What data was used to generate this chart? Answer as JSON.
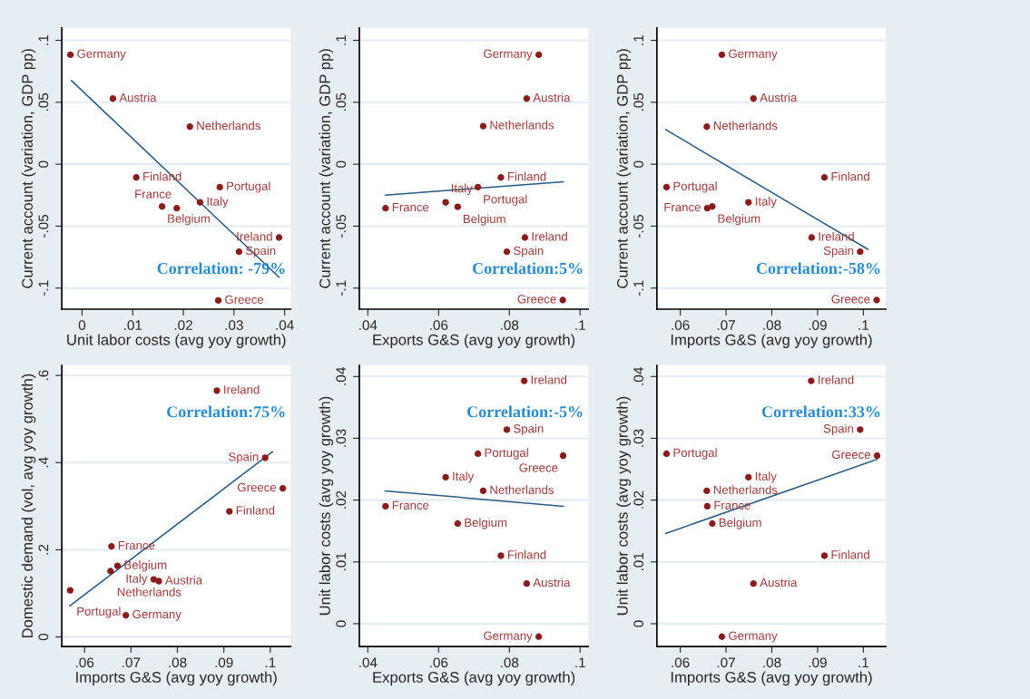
{
  "chart_data": [
    {
      "type": "scatter",
      "xlabel": "Unit labor costs (avg yoy growth)",
      "ylabel": "Current account (variation, GDP pp)",
      "xlim": [
        -0.004,
        0.0412
      ],
      "ylim": [
        -0.117,
        0.11
      ],
      "xticks": [
        0,
        {
          "value": 0.01,
          "label": ".01"
        },
        {
          "value": 0.02,
          "label": ".02"
        },
        {
          "value": 0.03,
          "label": ".03"
        },
        {
          "value": 0.04,
          "label": ".04"
        }
      ],
      "yticks": [
        {
          "value": -0.1,
          "label": "-.1"
        },
        {
          "value": -0.05,
          "label": "-.05"
        },
        0,
        {
          "value": 0.05,
          "label": ".05"
        },
        {
          "value": 0.1,
          "label": ".1"
        }
      ],
      "grid": "y",
      "marker": "circle",
      "series": [
        {
          "type": "scatter",
          "color": "#8b1c1c",
          "x": [
            -0.0023,
            0.0061,
            0.0213,
            0.0107,
            0.0272,
            0.0233,
            0.0158,
            0.0187,
            0.0389,
            0.031,
            0.0269
          ],
          "values": [
            0.0884,
            0.053,
            0.0303,
            -0.0107,
            -0.0185,
            -0.0308,
            -0.0341,
            -0.0355,
            -0.0592,
            -0.0706,
            -0.11
          ]
        },
        {
          "type": "line",
          "marker": "none",
          "color": "#2a5a80",
          "x": [
            -0.0021,
            0.0389
          ],
          "values": [
            0.0675,
            -0.0912
          ]
        }
      ],
      "annotations": [
        {
          "text": "Germany",
          "x": -0.0023,
          "y": 0.0884
        },
        {
          "text": "Austria",
          "x": 0.0061,
          "y": 0.053
        },
        {
          "text": "Netherlands",
          "x": 0.0213,
          "y": 0.0303
        },
        {
          "text": "Finland",
          "x": 0.0107,
          "y": -0.0107
        },
        {
          "text": "Portugal",
          "x": 0.0272,
          "y": -0.0185
        },
        {
          "text": "Italy",
          "x": 0.0233,
          "y": -0.0308
        },
        {
          "text": "Belgium",
          "x": 0.0158,
          "y": -0.0341
        },
        {
          "text": "France",
          "x": 0.0187,
          "y": -0.0355
        },
        {
          "text": "Ireland",
          "x": 0.0389,
          "y": -0.0592
        },
        {
          "text": "Spain",
          "x": 0.031,
          "y": -0.0706
        },
        {
          "text": "Greece",
          "x": 0.0269,
          "y": -0.11
        },
        "Correlation: -79%"
      ]
    },
    {
      "type": "scatter",
      "xlabel": "Exports G&S (avg yoy growth)",
      "ylabel": "Current account (variation, GDP pp)",
      "xlim": [
        0.0376,
        0.1023
      ],
      "ylim": [
        -0.117,
        0.11
      ],
      "xticks": [
        {
          "value": 0.04,
          "label": ".04"
        },
        {
          "value": 0.06,
          "label": ".06"
        },
        {
          "value": 0.08,
          "label": ".08"
        },
        {
          "value": 0.1,
          "label": ".1"
        }
      ],
      "yticks": [
        {
          "value": -0.1,
          "label": "-.1"
        },
        {
          "value": -0.05,
          "label": "-.05"
        },
        0,
        {
          "value": 0.05,
          "label": ".05"
        },
        {
          "value": 0.1,
          "label": ".1"
        }
      ],
      "grid": "y",
      "marker": "circle",
      "series": [
        {
          "type": "scatter",
          "color": "#8b1c1c",
          "x": [
            0.0883,
            0.0849,
            0.0726,
            0.0776,
            0.0711,
            0.062,
            0.0654,
            0.045,
            0.0844,
            0.0793,
            0.0951
          ],
          "values": [
            0.0884,
            0.053,
            0.0308,
            -0.0107,
            -0.0185,
            -0.0308,
            -0.0344,
            -0.0355,
            -0.0592,
            -0.0706,
            -0.1097
          ]
        },
        {
          "type": "line",
          "marker": "none",
          "color": "#2a5a80",
          "x": [
            0.0449,
            0.0953
          ],
          "values": [
            -0.0249,
            -0.0142
          ]
        }
      ],
      "annotations": [
        {
          "text": "Germany",
          "x": 0.0883,
          "y": 0.0884
        },
        {
          "text": "Austria",
          "x": 0.0849,
          "y": 0.053
        },
        {
          "text": "Netherlands",
          "x": 0.0726,
          "y": 0.0308
        },
        {
          "text": "Finland",
          "x": 0.0776,
          "y": -0.0107
        },
        {
          "text": "Portugal",
          "x": 0.0711,
          "y": -0.0185
        },
        {
          "text": "Italy",
          "x": 0.062,
          "y": -0.0308
        },
        {
          "text": "Belgium",
          "x": 0.0654,
          "y": -0.0344
        },
        {
          "text": "France",
          "x": 0.045,
          "y": -0.0355
        },
        {
          "text": "Ireland",
          "x": 0.0844,
          "y": -0.0592
        },
        {
          "text": "Spain",
          "x": 0.0793,
          "y": -0.0706
        },
        {
          "text": "Greece",
          "x": 0.0951,
          "y": -0.1097
        },
        "Correlation:5%"
      ]
    },
    {
      "type": "scatter",
      "xlabel": "Imports G&S (avg yoy growth)",
      "ylabel": "Current account (variation, GDP pp)",
      "xlim": [
        0.0549,
        0.1049
      ],
      "ylim": [
        -0.117,
        0.11
      ],
      "xticks": [
        {
          "value": 0.06,
          "label": ".06"
        },
        {
          "value": 0.07,
          "label": ".07"
        },
        {
          "value": 0.08,
          "label": ".08"
        },
        {
          "value": 0.09,
          "label": ".09"
        },
        {
          "value": 0.1,
          "label": ".1"
        }
      ],
      "yticks": [
        {
          "value": -0.1,
          "label": "-.1"
        },
        {
          "value": -0.05,
          "label": "-.05"
        },
        0,
        {
          "value": 0.05,
          "label": ".05"
        },
        {
          "value": 0.1,
          "label": ".1"
        }
      ],
      "grid": "y",
      "marker": "circle",
      "series": [
        {
          "type": "scatter",
          "color": "#8b1c1c",
          "x": [
            0.0691,
            0.076,
            0.0658,
            0.0915,
            0.057,
            0.0749,
            0.067,
            0.0659,
            0.0887,
            0.0993,
            0.1029
          ],
          "values": [
            0.0884,
            0.053,
            0.0303,
            -0.0107,
            -0.0185,
            -0.0308,
            -0.0341,
            -0.0355,
            -0.0592,
            -0.0706,
            -0.1097
          ]
        },
        {
          "type": "line",
          "marker": "none",
          "color": "#2a5a80",
          "x": [
            0.0568,
            0.101
          ],
          "values": [
            0.028,
            -0.0687
          ]
        }
      ],
      "annotations": [
        {
          "text": "Germany",
          "x": 0.0691,
          "y": 0.0884
        },
        {
          "text": "Austria",
          "x": 0.076,
          "y": 0.053
        },
        {
          "text": "Netherlands",
          "x": 0.0658,
          "y": 0.0303
        },
        {
          "text": "Finland",
          "x": 0.0915,
          "y": -0.0107
        },
        {
          "text": "Portugal",
          "x": 0.057,
          "y": -0.0185
        },
        {
          "text": "Italy",
          "x": 0.0749,
          "y": -0.0308
        },
        {
          "text": "Belgium",
          "x": 0.067,
          "y": -0.0341
        },
        {
          "text": "France",
          "x": 0.0659,
          "y": -0.0355
        },
        {
          "text": "Ireland",
          "x": 0.0887,
          "y": -0.0592
        },
        {
          "text": "Spain",
          "x": 0.0993,
          "y": -0.0706
        },
        {
          "text": "Greece",
          "x": 0.1029,
          "y": -0.1097
        },
        "Correlation:-58%"
      ]
    },
    {
      "type": "scatter",
      "xlabel": "Imports G&S (avg yoy growth)",
      "ylabel": "Domestic demand (vol, avg yoy growth)",
      "xlim": [
        0.0551,
        0.1044
      ],
      "ylim": [
        -0.022,
        0.623
      ],
      "xticks": [
        {
          "value": 0.06,
          "label": ".06"
        },
        {
          "value": 0.07,
          "label": ".07"
        },
        {
          "value": 0.08,
          "label": ".08"
        },
        {
          "value": 0.09,
          "label": ".09"
        },
        {
          "value": 0.1,
          "label": ".1"
        }
      ],
      "yticks": [
        0,
        {
          "value": 0.2,
          "label": ".2"
        },
        {
          "value": 0.4,
          "label": ".4"
        },
        {
          "value": 0.6,
          "label": ".6"
        }
      ],
      "grid": "y",
      "marker": "circle",
      "series": [
        {
          "type": "scatter",
          "color": "#8b1c1c",
          "x": [
            0.0885,
            0.0989,
            0.1027,
            0.0912,
            0.0658,
            0.0671,
            0.0656,
            0.0749,
            0.076,
            0.0569,
            0.0689
          ],
          "values": [
            0.565,
            0.411,
            0.341,
            0.288,
            0.208,
            0.163,
            0.151,
            0.132,
            0.128,
            0.107,
            0.05
          ]
        },
        {
          "type": "line",
          "marker": "none",
          "color": "#2a5a80",
          "x": [
            0.0568,
            0.1005
          ],
          "values": [
            0.071,
            0.425
          ]
        }
      ],
      "annotations": [
        {
          "text": "Ireland",
          "x": 0.0885,
          "y": 0.565
        },
        {
          "text": "Spain",
          "x": 0.0989,
          "y": 0.411
        },
        {
          "text": "Greece",
          "x": 0.1027,
          "y": 0.341
        },
        {
          "text": "Finland",
          "x": 0.0912,
          "y": 0.288
        },
        {
          "text": "France",
          "x": 0.0658,
          "y": 0.208
        },
        {
          "text": "Belgium",
          "x": 0.0671,
          "y": 0.163
        },
        {
          "text": "Netherlands",
          "x": 0.0656,
          "y": 0.151
        },
        {
          "text": "Italy",
          "x": 0.0749,
          "y": 0.132
        },
        {
          "text": "Austria",
          "x": 0.076,
          "y": 0.128
        },
        {
          "text": "Portugal",
          "x": 0.0569,
          "y": 0.107
        },
        {
          "text": "Germany",
          "x": 0.0689,
          "y": 0.05
        },
        "Correlation:75%"
      ]
    },
    {
      "type": "scatter",
      "xlabel": "Exports G&S (avg yoy growth)",
      "ylabel": "Unit labor costs (avg yoy growth)",
      "xlim": [
        0.0376,
        0.1023
      ],
      "ylim": [
        -0.0037,
        0.0418
      ],
      "xticks": [
        {
          "value": 0.04,
          "label": ".04"
        },
        {
          "value": 0.06,
          "label": ".06"
        },
        {
          "value": 0.08,
          "label": ".08"
        },
        {
          "value": 0.1,
          "label": ".1"
        }
      ],
      "yticks": [
        0,
        {
          "value": 0.01,
          "label": ".01"
        },
        {
          "value": 0.02,
          "label": ".02"
        },
        {
          "value": 0.03,
          "label": ".03"
        },
        {
          "value": 0.04,
          "label": ".04"
        }
      ],
      "grid": "y",
      "marker": "circle",
      "series": [
        {
          "type": "scatter",
          "color": "#8b1c1c",
          "x": [
            0.0842,
            0.0793,
            0.0711,
            0.0952,
            0.062,
            0.0726,
            0.045,
            0.0654,
            0.0776,
            0.0849,
            0.0883
          ],
          "values": [
            0.0393,
            0.0314,
            0.0275,
            0.0272,
            0.0237,
            0.0215,
            0.019,
            0.0162,
            0.011,
            0.0065,
            -0.0021
          ]
        },
        {
          "type": "line",
          "marker": "none",
          "color": "#2a5a80",
          "x": [
            0.0449,
            0.0953
          ],
          "values": [
            0.0215,
            0.019
          ]
        }
      ],
      "annotations": [
        {
          "text": "Ireland",
          "x": 0.0842,
          "y": 0.0393
        },
        {
          "text": "Spain",
          "x": 0.0793,
          "y": 0.0314
        },
        {
          "text": "Portugal",
          "x": 0.0711,
          "y": 0.0275
        },
        {
          "text": "Greece",
          "x": 0.0952,
          "y": 0.0272
        },
        {
          "text": "Italy",
          "x": 0.062,
          "y": 0.0237
        },
        {
          "text": "Netherlands",
          "x": 0.0726,
          "y": 0.0215
        },
        {
          "text": "France",
          "x": 0.045,
          "y": 0.019
        },
        {
          "text": "Belgium",
          "x": 0.0654,
          "y": 0.0162
        },
        {
          "text": "Finland",
          "x": 0.0776,
          "y": 0.011
        },
        {
          "text": "Austria",
          "x": 0.0849,
          "y": 0.0065
        },
        {
          "text": "Germany",
          "x": 0.0883,
          "y": -0.0021
        },
        "Correlation:-5%"
      ]
    },
    {
      "type": "scatter",
      "xlabel": "Imports G&S (avg yoy growth)",
      "ylabel": "Unit labor costs (avg yoy growth)",
      "xlim": [
        0.0549,
        0.1049
      ],
      "ylim": [
        -0.0037,
        0.0418
      ],
      "xticks": [
        {
          "value": 0.06,
          "label": ".06"
        },
        {
          "value": 0.07,
          "label": ".07"
        },
        {
          "value": 0.08,
          "label": ".08"
        },
        {
          "value": 0.09,
          "label": ".09"
        },
        {
          "value": 0.1,
          "label": ".1"
        }
      ],
      "yticks": [
        0,
        {
          "value": 0.01,
          "label": ".01"
        },
        {
          "value": 0.02,
          "label": ".02"
        },
        {
          "value": 0.03,
          "label": ".03"
        },
        {
          "value": 0.04,
          "label": ".04"
        }
      ],
      "grid": "y",
      "marker": "circle",
      "series": [
        {
          "type": "scatter",
          "color": "#8b1c1c",
          "x": [
            0.0886,
            0.0993,
            0.103,
            0.057,
            0.0749,
            0.0658,
            0.0659,
            0.067,
            0.0915,
            0.076,
            0.0691
          ],
          "values": [
            0.0393,
            0.0314,
            0.0272,
            0.0275,
            0.0237,
            0.0215,
            0.019,
            0.0162,
            0.011,
            0.0065,
            -0.0021
          ]
        },
        {
          "type": "line",
          "marker": "none",
          "color": "#2a5a80",
          "x": [
            0.0568,
            0.103
          ],
          "values": [
            0.0146,
            0.0266
          ]
        }
      ],
      "annotations": [
        {
          "text": "Ireland",
          "x": 0.0886,
          "y": 0.0393
        },
        {
          "text": "Spain",
          "x": 0.0993,
          "y": 0.0314
        },
        {
          "text": "Greece",
          "x": 0.103,
          "y": 0.0272
        },
        {
          "text": "Portugal",
          "x": 0.057,
          "y": 0.0275
        },
        {
          "text": "Italy",
          "x": 0.0749,
          "y": 0.0237
        },
        {
          "text": "Netherlands",
          "x": 0.0658,
          "y": 0.0215
        },
        {
          "text": "France",
          "x": 0.0659,
          "y": 0.019
        },
        {
          "text": "Belgium",
          "x": 0.067,
          "y": 0.0162
        },
        {
          "text": "Finland",
          "x": 0.0915,
          "y": 0.011
        },
        {
          "text": "Austria",
          "x": 0.076,
          "y": 0.0065
        },
        {
          "text": "Germany",
          "x": 0.0691,
          "y": -0.0021
        },
        "Correlation:33%"
      ]
    }
  ]
}
